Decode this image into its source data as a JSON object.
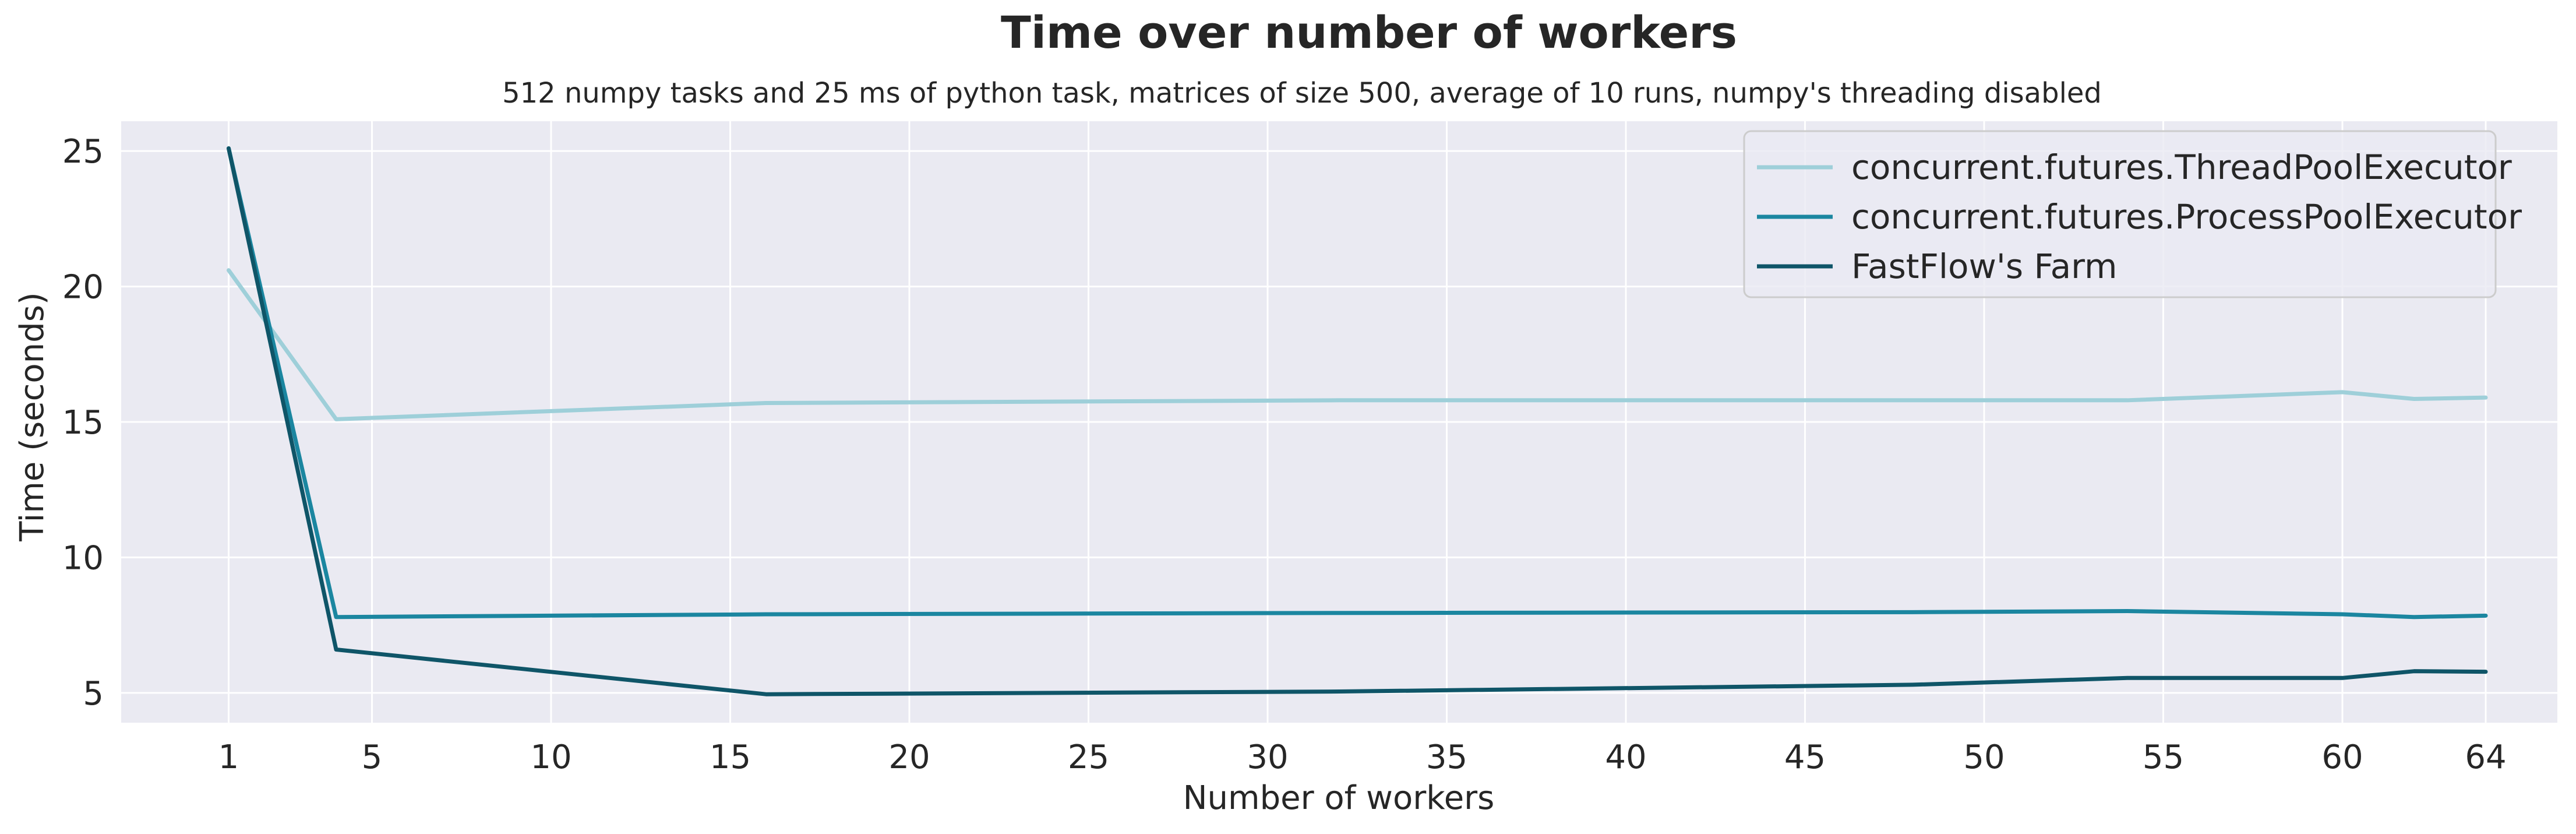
{
  "chart_data": {
    "type": "line",
    "title": "Time over number of workers",
    "subtitle": "512 numpy tasks and 25 ms of python task, matrices of size 500, average of 10 runs, numpy's threading disabled",
    "xlabel": "Number of workers",
    "ylabel": "Time (seconds)",
    "xlim": [
      -2,
      66
    ],
    "ylim": [
      3.9,
      26.1
    ],
    "xticks": [
      1,
      5,
      10,
      15,
      20,
      25,
      30,
      35,
      40,
      45,
      50,
      55,
      60,
      64
    ],
    "yticks": [
      5,
      10,
      15,
      20,
      25
    ],
    "grid": true,
    "legend_position": "top-right",
    "x": [
      1,
      4,
      16,
      32,
      48,
      54,
      60,
      62,
      64
    ],
    "series": [
      {
        "name": "concurrent.futures.ThreadPoolExecutor",
        "color": "#9ecfd9",
        "values": [
          20.6,
          15.1,
          15.7,
          15.8,
          15.8,
          15.8,
          16.1,
          15.85,
          15.9
        ]
      },
      {
        "name": "concurrent.futures.ProcessPoolExecutor",
        "color": "#1b86a0",
        "values": [
          25.1,
          7.8,
          7.9,
          7.95,
          7.98,
          8.02,
          7.9,
          7.8,
          7.85
        ]
      },
      {
        "name": "FastFlow's Farm",
        "color": "#0f5568",
        "values": [
          25.1,
          6.6,
          4.95,
          5.05,
          5.3,
          5.55,
          5.55,
          5.8,
          5.78
        ]
      }
    ],
    "colors": {
      "plot_background": "#eaeaf2",
      "grid": "#ffffff",
      "page_background": "#ffffff"
    }
  }
}
